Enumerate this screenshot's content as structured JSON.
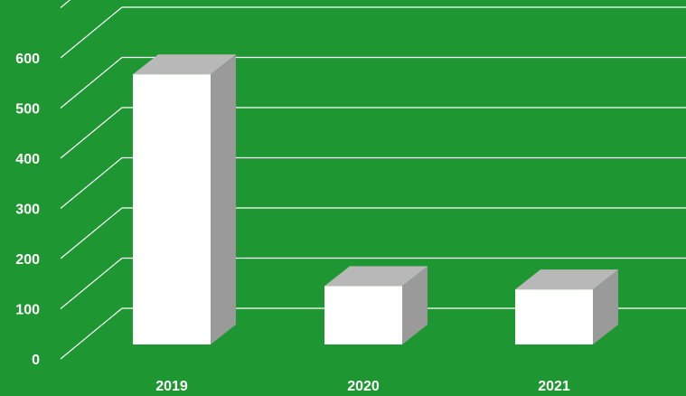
{
  "chart_data": {
    "type": "bar",
    "categories": [
      "2019",
      "2020",
      "2021"
    ],
    "values": [
      555,
      120,
      113
    ],
    "ylim": [
      0,
      700
    ],
    "yticks": [
      0,
      100,
      200,
      300,
      400,
      500,
      600
    ],
    "grid": true,
    "style": "3d-column",
    "colors": {
      "background": "#1e9632",
      "bar_front": "#ffffff",
      "bar_top": "#b8b8b8",
      "bar_side": "#9a9a9a",
      "gridline": "#ffffff",
      "text": "#ffffff"
    }
  }
}
